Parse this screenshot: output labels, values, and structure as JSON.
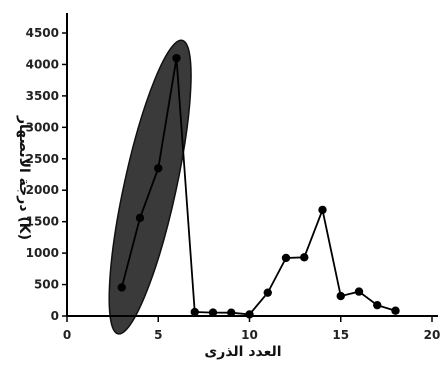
{
  "chart_data": {
    "type": "scatter",
    "xlabel": "العدد الذرى",
    "ylabel": "درجة الانصهار (K)",
    "xlim": [
      0,
      20
    ],
    "ylim": [
      0,
      4500
    ],
    "xticks": [
      0,
      5,
      10,
      15,
      20
    ],
    "yticks": [
      0,
      500,
      1000,
      1500,
      2000,
      2500,
      3000,
      3500,
      4000,
      4500
    ],
    "grid": false,
    "series": [
      {
        "x": [
          3,
          4,
          5,
          6,
          7,
          8,
          9,
          10,
          11,
          12,
          13,
          14,
          15,
          16,
          17,
          18
        ],
        "values": [
          454,
          1560,
          2349,
          4100,
          63,
          54,
          53,
          25,
          371,
          923,
          933,
          1687,
          317,
          388,
          172,
          84
        ]
      }
    ],
    "highlight": {
      "shape": "ellipse",
      "x_range": [
        3,
        6
      ],
      "color": "#3a3a3a"
    },
    "colors": {
      "line": "#000000",
      "marker": "#000000",
      "highlight_fill": "#3a3a3a"
    }
  }
}
